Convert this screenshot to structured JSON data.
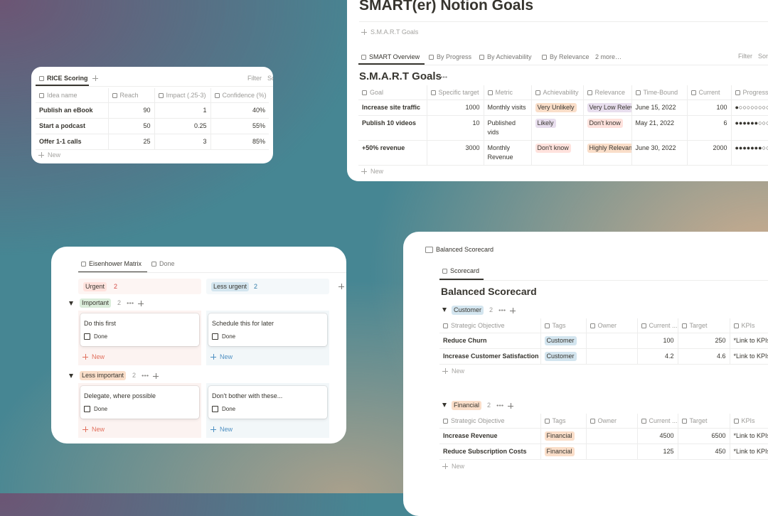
{
  "rice_scoring": {
    "tab": "RICE Scoring",
    "filter": "Filter",
    "sort": "So",
    "columns": [
      "Idea name",
      "Reach",
      "Impact (.25-3)",
      "Confidence (%)"
    ],
    "rows": [
      [
        "Publish an eBook",
        90,
        1,
        "40%"
      ],
      [
        "Start a podcast",
        50,
        0.25,
        "55%"
      ],
      [
        "Offer 1-1 calls",
        25,
        3,
        "85%"
      ]
    ],
    "new": "New"
  },
  "smart_goals": {
    "title": "SMART(er) Notion Goals",
    "linked_page": "S.M.A.R.T Goals",
    "tabs": [
      "SMART Overview",
      "By Progress",
      "By Achievability",
      "By Relevance",
      "2 more…"
    ],
    "filter": "Filter",
    "sort": "Sor",
    "heading": "S.M.A.R.T Goals",
    "columns": [
      "Goal",
      "Specific target",
      "Metric",
      "Achievability",
      "Relevance",
      "Time-Bound",
      "Current",
      "Progress"
    ],
    "rows": [
      [
        "Increase site traffic",
        1000,
        "Monthly visits",
        "Very Unlikely",
        "Very Low Relevance",
        "June 15, 2022",
        100,
        "●○○○○○○○○○"
      ],
      [
        "Publish 10 videos",
        10,
        "Published vids",
        "Likely",
        "Don't know",
        "May 21, 2022",
        6,
        "●●●●●●○○○○"
      ],
      [
        "+50% revenue",
        3000,
        "Monthly Revenue",
        "Don't know",
        "Highly Relevant",
        "June 30, 2022",
        2000,
        "●●●●●●●○○○"
      ]
    ],
    "new": "New"
  },
  "eisenhower": {
    "tabs": [
      "Eisenhower Matrix",
      "Done"
    ],
    "columns": [
      {
        "label": "Urgent",
        "count": 2
      },
      {
        "label": "Less urgent",
        "count": 2
      }
    ],
    "groups": [
      {
        "label": "Important",
        "count": 2,
        "cards": [
          "Do this first",
          "Schedule this for later"
        ]
      },
      {
        "label": "Less important",
        "count": 2,
        "cards": [
          "Delegate, where possible",
          "Don't bother with these..."
        ]
      }
    ],
    "checkbox_label": "Done",
    "new": "New"
  },
  "balanced_scorecard": {
    "title": "Balanced Scorecard",
    "tab": "Scorecard",
    "heading": "Balanced Scorecard",
    "columns": [
      "Strategic Objective",
      "Tags",
      "Owner",
      "Current ...",
      "Target",
      "KPIs"
    ],
    "groups": [
      {
        "label": "Customer",
        "count": 2,
        "rows": [
          [
            "Reduce Churn",
            "Customer",
            100,
            250,
            "*Link to KPIs"
          ],
          [
            "Increase Customer Satisfaction",
            "Customer",
            4.2,
            4.6,
            "*Link to KPIs"
          ]
        ]
      },
      {
        "label": "Financial",
        "count": 2,
        "rows": [
          [
            "Increase Revenue",
            "Financial",
            4500,
            6500,
            "*Link to KPIs"
          ],
          [
            "Reduce Subscription Costs",
            "Financial",
            125,
            450,
            "*Link to KPIs"
          ]
        ]
      }
    ],
    "new": "New"
  }
}
